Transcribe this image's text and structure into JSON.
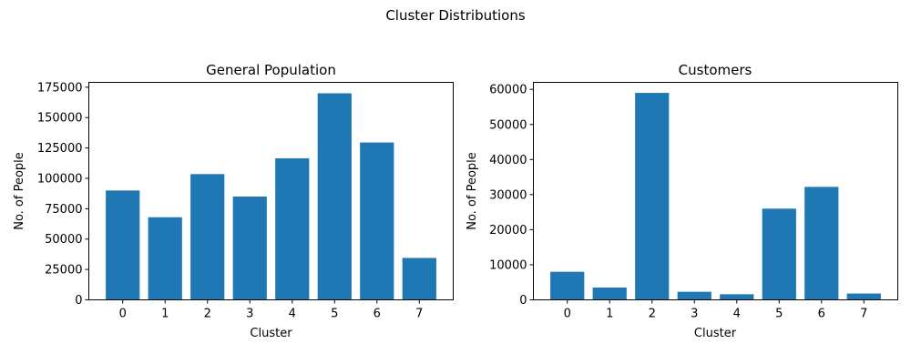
{
  "figure": {
    "title": "Cluster Distributions"
  },
  "bar_color": "#1f77b4",
  "chart_data": [
    {
      "type": "bar",
      "title": "General Population",
      "xlabel": "Cluster",
      "ylabel": "No. of People",
      "categories": [
        "0",
        "1",
        "2",
        "3",
        "4",
        "5",
        "6",
        "7"
      ],
      "values": [
        90000,
        68000,
        103500,
        85000,
        116500,
        170000,
        129500,
        34500
      ],
      "ylim": [
        0,
        179000
      ],
      "yticks": [
        0,
        25000,
        50000,
        75000,
        100000,
        125000,
        150000,
        175000
      ],
      "ytick_labels": [
        "0",
        "25000",
        "50000",
        "75000",
        "100000",
        "125000",
        "150000",
        "175000"
      ],
      "grid": false,
      "legend": "none"
    },
    {
      "type": "bar",
      "title": "Customers",
      "xlabel": "Cluster",
      "ylabel": "No. of People",
      "categories": [
        "0",
        "1",
        "2",
        "3",
        "4",
        "5",
        "6",
        "7"
      ],
      "values": [
        8000,
        3500,
        59000,
        2300,
        1600,
        26000,
        32200,
        1800
      ],
      "ylim": [
        0,
        62000
      ],
      "yticks": [
        0,
        10000,
        20000,
        30000,
        40000,
        50000,
        60000
      ],
      "ytick_labels": [
        "0",
        "10000",
        "20000",
        "30000",
        "40000",
        "50000",
        "60000"
      ],
      "grid": false,
      "legend": "none"
    }
  ]
}
